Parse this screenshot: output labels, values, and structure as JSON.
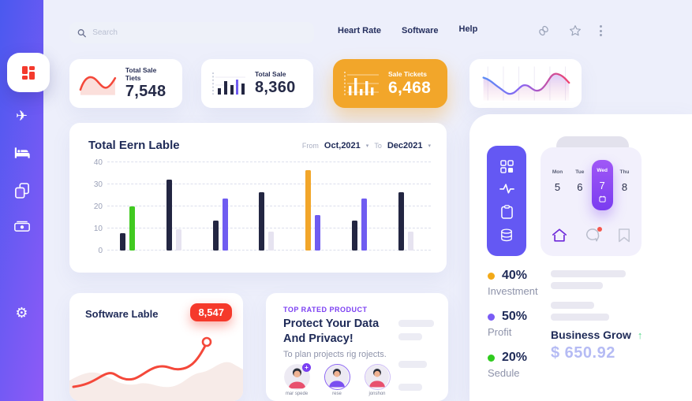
{
  "colors": {
    "background": "#edeffb",
    "navy": "#232642",
    "accent_purple": "#6f5cf1",
    "accent_orange": "#f2a62a",
    "accent_red": "#f5392b",
    "accent_green": "#3ecb1d",
    "light_bar": "#e6e3f0",
    "sidebar_gradient": [
      "#4a59ef",
      "#8e5af7"
    ]
  },
  "sidebar": {
    "items": [
      {
        "icon": "dashboard-grid-icon",
        "active": true
      },
      {
        "icon": "airplane-icon"
      },
      {
        "icon": "bed-icon"
      },
      {
        "icon": "copy-pages-icon"
      },
      {
        "icon": "cash-icon"
      },
      {
        "icon": "gear-icon"
      }
    ]
  },
  "topbar": {
    "search_placeholder": "Search",
    "nav": [
      {
        "label": "Heart Rate"
      },
      {
        "label": "Software"
      },
      {
        "label": "Help"
      }
    ],
    "icons": [
      "link-icon",
      "star-icon",
      "kebab-menu-icon"
    ]
  },
  "stat_cards": [
    {
      "label": "Total Sale Tiets",
      "value": "7,548",
      "chart": "red-wave"
    },
    {
      "label": "Total Sale",
      "value": "8,360",
      "chart": "mini-bars"
    },
    {
      "label": "Sale Tickets",
      "value": "6,468",
      "chart": "mini-bars-white",
      "highlighted": true
    },
    {
      "chart": "gradient-wave"
    }
  ],
  "main_chart": {
    "title": "Total Eern Lable",
    "from_label": "From",
    "from_value": "Oct,2021",
    "to_label": "To",
    "to_value": "Dec2021",
    "chart_data": {
      "type": "bar",
      "title": "Total Eern Lable",
      "xlabel": "",
      "ylabel": "",
      "ylim": [
        0,
        40
      ],
      "y_ticks": [
        0,
        10,
        20,
        30,
        40
      ],
      "grid": "dashed-horizontal",
      "groups": [
        {
          "bars": [
            {
              "value": 8,
              "color": "#232642"
            },
            {
              "value": 20,
              "color": "#41ca20"
            }
          ]
        },
        {
          "bars": [
            {
              "value": 32,
              "color": "#232642"
            },
            {
              "value": 9.5,
              "color": "#e6e3f0"
            }
          ]
        },
        {
          "bars": [
            {
              "value": 13.5,
              "color": "#232642"
            },
            {
              "value": 23.5,
              "color": "#6f5cf1"
            }
          ]
        },
        {
          "bars": [
            {
              "value": 26.5,
              "color": "#232642"
            },
            {
              "value": 8.5,
              "color": "#e6e3f0"
            }
          ]
        },
        {
          "bars": [
            {
              "value": 36.5,
              "color": "#f2a62a"
            },
            {
              "value": 16,
              "color": "#6f5cf1"
            }
          ]
        },
        {
          "bars": [
            {
              "value": 13.5,
              "color": "#232642"
            },
            {
              "value": 23.5,
              "color": "#6f5cf1"
            }
          ]
        },
        {
          "bars": [
            {
              "value": 26.5,
              "color": "#232642"
            },
            {
              "value": 8.5,
              "color": "#e6e3f0"
            }
          ]
        }
      ]
    }
  },
  "software_card": {
    "title": "Software Lable",
    "badge": "8,547"
  },
  "product_card": {
    "eyebrow": "TOP RATED PRODUCT",
    "title": "Protect Your Data And Privacy!",
    "subtitle": "To plan projects rig rojects.",
    "members": [
      {
        "name": "mar spede",
        "has_add_badge": true
      },
      {
        "name": "rese"
      },
      {
        "name": "jonshon"
      }
    ]
  },
  "right_panel": {
    "toolbar_icons": [
      "grid-icon",
      "pulse-icon",
      "clipboard-icon",
      "database-icon"
    ],
    "calendar": {
      "days": [
        {
          "dow": "Mon",
          "date": "5"
        },
        {
          "dow": "Tue",
          "date": "6"
        },
        {
          "dow": "Wed",
          "date": "7",
          "selected": true
        },
        {
          "dow": "Thu",
          "date": "8"
        }
      ],
      "footer_icons": [
        "home-icon",
        "chat-icon",
        "bookmark-icon"
      ]
    },
    "legend": [
      {
        "pct": "40%",
        "label": "Investment",
        "color": "#f2a918"
      },
      {
        "pct": "50%",
        "label": "Profit",
        "color": "#7a5cf5"
      },
      {
        "pct": "20%",
        "label": "Sedule",
        "color": "#2fcb1e"
      }
    ],
    "business": {
      "title": "Business Grow",
      "trend": "up",
      "value": "$ 650.92"
    }
  }
}
